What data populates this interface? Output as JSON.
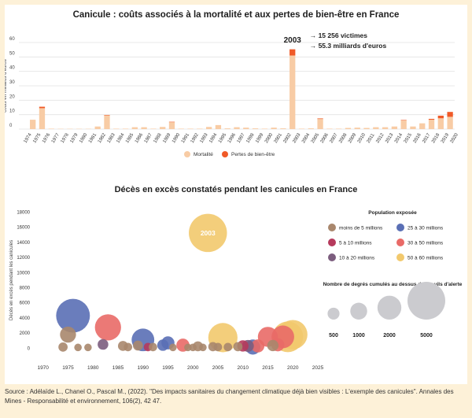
{
  "chart_data": [
    {
      "type": "bar",
      "title": "Canicule : coûts associés à la mortalité et aux pertes de bien-être en France",
      "ylabel": "coûts en milliards d'euros",
      "ylim": [
        0,
        60
      ],
      "yticks": [
        0,
        10,
        20,
        30,
        40,
        50,
        60
      ],
      "stacked": true,
      "grid": true,
      "legend_position": "bottom",
      "categories": [
        "1974",
        "1975",
        "1976",
        "1977",
        "1978",
        "1979",
        "1980",
        "1981",
        "1982",
        "1983",
        "1984",
        "1985",
        "1986",
        "1987",
        "1988",
        "1989",
        "1990",
        "1991",
        "1992",
        "1993",
        "1994",
        "1995",
        "1996",
        "1997",
        "1998",
        "1999",
        "2000",
        "2001",
        "2002",
        "2003",
        "2004",
        "2005",
        "2006",
        "2007",
        "2008",
        "2009",
        "2010",
        "2011",
        "2012",
        "2013",
        "2014",
        "2015",
        "2016",
        "2017",
        "2018",
        "2019",
        "2020"
      ],
      "series": [
        {
          "name": "Mortalité",
          "color": "#f8cca5",
          "values": [
            0,
            6.5,
            14.5,
            0.3,
            0.2,
            0.2,
            0.2,
            0.2,
            1.8,
            9.5,
            0.3,
            0.3,
            1.3,
            1.3,
            0.3,
            1.5,
            4.8,
            0.3,
            0.3,
            0.3,
            1.5,
            2.8,
            0.5,
            1.3,
            1.0,
            0.5,
            0.3,
            1.0,
            0.5,
            51.0,
            0.3,
            0.5,
            7.0,
            0.3,
            0.3,
            0.8,
            1.0,
            0.8,
            1.3,
            1.3,
            1.8,
            6.0,
            1.8,
            4.0,
            6.5,
            7.5,
            8.5
          ]
        },
        {
          "name": "Pertes de bien-être",
          "color": "#f05a28",
          "values": [
            0,
            0,
            1.0,
            0,
            0,
            0,
            0,
            0,
            0,
            0.3,
            0,
            0,
            0,
            0,
            0,
            0,
            0.3,
            0,
            0,
            0,
            0,
            0,
            0,
            0,
            0,
            0,
            0,
            0,
            0,
            4.3,
            0,
            0,
            0.4,
            0,
            0,
            0,
            0,
            0,
            0,
            0,
            0,
            0.3,
            0,
            0,
            0.6,
            1.8,
            3.4
          ]
        }
      ],
      "annotation": {
        "year": "2003",
        "lines": [
          "→ 15 256 victimes",
          "→ 55.3 milliards d'euros"
        ]
      }
    },
    {
      "type": "scatter",
      "title": "Décès en excès constatés pendant les canicules en France",
      "ylabel": "Décès en excès pendant les canicules",
      "xlim": [
        1968,
        2025
      ],
      "xticks": [
        1970,
        1975,
        1980,
        1985,
        1990,
        1995,
        2000,
        2005,
        2010,
        2015,
        2020,
        2025
      ],
      "ylim": [
        -800,
        19200
      ],
      "yticks": [
        0,
        2000,
        4000,
        6000,
        8000,
        10000,
        12000,
        14000,
        16000,
        18000
      ],
      "grid": false,
      "point_label": "2003",
      "points": [
        {
          "x": 1974,
          "y": 150,
          "size": 300,
          "pop": "moins"
        },
        {
          "x": 1975,
          "y": 1800,
          "size": 900,
          "pop": "moins"
        },
        {
          "x": 1976,
          "y": 4300,
          "size": 4000,
          "pop": "25-30"
        },
        {
          "x": 1977,
          "y": 100,
          "size": 200,
          "pop": "moins"
        },
        {
          "x": 1979,
          "y": 100,
          "size": 200,
          "pop": "moins"
        },
        {
          "x": 1982,
          "y": 500,
          "size": 400,
          "pop": "10-20"
        },
        {
          "x": 1983,
          "y": 2750,
          "size": 2400,
          "pop": "30-50"
        },
        {
          "x": 1986,
          "y": 300,
          "size": 350,
          "pop": "moins"
        },
        {
          "x": 1987,
          "y": 150,
          "size": 250,
          "pop": "moins"
        },
        {
          "x": 1989,
          "y": 350,
          "size": 350,
          "pop": "moins"
        },
        {
          "x": 1990,
          "y": 1100,
          "size": 1800,
          "pop": "25-30"
        },
        {
          "x": 1991,
          "y": 150,
          "size": 250,
          "pop": "5-10"
        },
        {
          "x": 1992,
          "y": 150,
          "size": 250,
          "pop": "moins"
        },
        {
          "x": 1994,
          "y": 400,
          "size": 450,
          "pop": "25-30"
        },
        {
          "x": 1995,
          "y": 700,
          "size": 600,
          "pop": "25-30"
        },
        {
          "x": 1996,
          "y": 100,
          "size": 200,
          "pop": "moins"
        },
        {
          "x": 1998,
          "y": 400,
          "size": 600,
          "pop": "30-50"
        },
        {
          "x": 1999,
          "y": 100,
          "size": 200,
          "pop": "moins"
        },
        {
          "x": 2000,
          "y": 100,
          "size": 200,
          "pop": "moins"
        },
        {
          "x": 2001,
          "y": 250,
          "size": 350,
          "pop": "moins"
        },
        {
          "x": 2002,
          "y": 100,
          "size": 200,
          "pop": "moins"
        },
        {
          "x": 2003,
          "y": 15250,
          "size": 5100,
          "pop": "50-60"
        },
        {
          "x": 2004,
          "y": 200,
          "size": 300,
          "pop": "moins"
        },
        {
          "x": 2005,
          "y": 150,
          "size": 250,
          "pop": "moins"
        },
        {
          "x": 2006,
          "y": 1400,
          "size": 3000,
          "pop": "50-60"
        },
        {
          "x": 2007,
          "y": 150,
          "size": 250,
          "pop": "moins"
        },
        {
          "x": 2009,
          "y": 200,
          "size": 300,
          "pop": "moins"
        },
        {
          "x": 2010,
          "y": 300,
          "size": 450,
          "pop": "5-10"
        },
        {
          "x": 2011,
          "y": 300,
          "size": 500,
          "pop": "10-20"
        },
        {
          "x": 2012,
          "y": 150,
          "size": 800,
          "pop": "25-30"
        },
        {
          "x": 2013,
          "y": 300,
          "size": 600,
          "pop": "30-50"
        },
        {
          "x": 2015,
          "y": 1500,
          "size": 1400,
          "pop": "30-50"
        },
        {
          "x": 2016,
          "y": 350,
          "size": 450,
          "pop": "moins"
        },
        {
          "x": 2017,
          "y": 450,
          "size": 600,
          "pop": "30-50"
        },
        {
          "x": 2018,
          "y": 1500,
          "size": 1800,
          "pop": "30-50"
        },
        {
          "x": 2019,
          "y": 1500,
          "size": 3300,
          "pop": "50-60"
        },
        {
          "x": 2020,
          "y": 1800,
          "size": 3000,
          "pop": "50-60"
        }
      ],
      "legend_population": {
        "title": "Population exposée",
        "items": [
          {
            "key": "moins",
            "label": "moins de 5 millions",
            "color": "#a9876d"
          },
          {
            "key": "5-10",
            "label": "5 à 10 millions",
            "color": "#b63a5c"
          },
          {
            "key": "10-20",
            "label": "10 à 20 millions",
            "color": "#7c5d7e"
          },
          {
            "key": "25-30",
            "label": "25 à 30 millions",
            "color": "#5a6fb5"
          },
          {
            "key": "30-50",
            "label": "30 à 50 millions",
            "color": "#e96a67"
          },
          {
            "key": "50-60",
            "label": "50 à 60 millions",
            "color": "#f2c96d"
          }
        ]
      },
      "legend_size": {
        "title": "Nombre de degrés cumulés au dessus des seuils d'alerte",
        "color": "#cbcbcf",
        "items": [
          {
            "label": "500",
            "value": 500
          },
          {
            "label": "1000",
            "value": 1000
          },
          {
            "label": "2000",
            "value": 2000
          },
          {
            "label": "5000",
            "value": 5000
          }
        ]
      }
    }
  ],
  "source": "Source : Adélaïde L., Chanel O., Pascal M., (2022). \"Des impacts sanitaires du changement climatique déjà bien visibles : L'exemple des canicules\". Annales des Mines - Responsabilité et environnement, 106(2), 42 47."
}
